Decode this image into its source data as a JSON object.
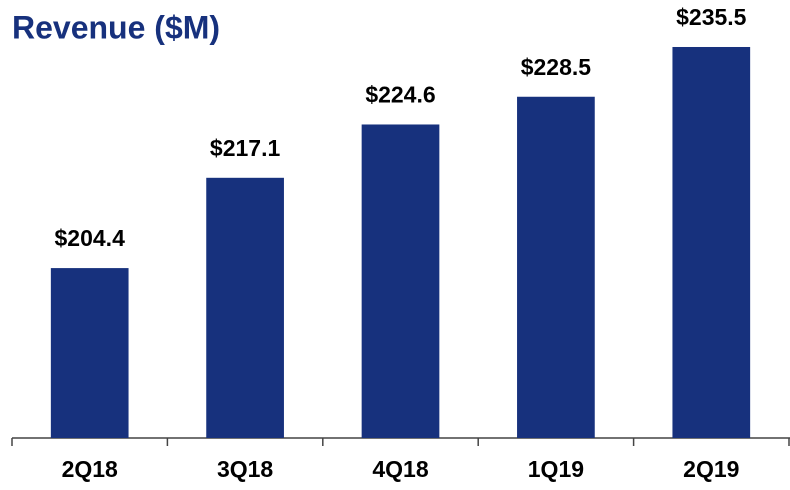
{
  "chart_data": {
    "type": "bar",
    "title": "Revenue ($M)",
    "categories": [
      "2Q18",
      "3Q18",
      "4Q18",
      "1Q19",
      "2Q19"
    ],
    "values": [
      204.4,
      217.1,
      224.6,
      228.5,
      235.5
    ],
    "value_labels": [
      "$204.4",
      "$217.1",
      "$224.6",
      "$228.5",
      "$235.5"
    ],
    "color": "#17317d",
    "ylim": [
      180.5,
      240
    ]
  }
}
